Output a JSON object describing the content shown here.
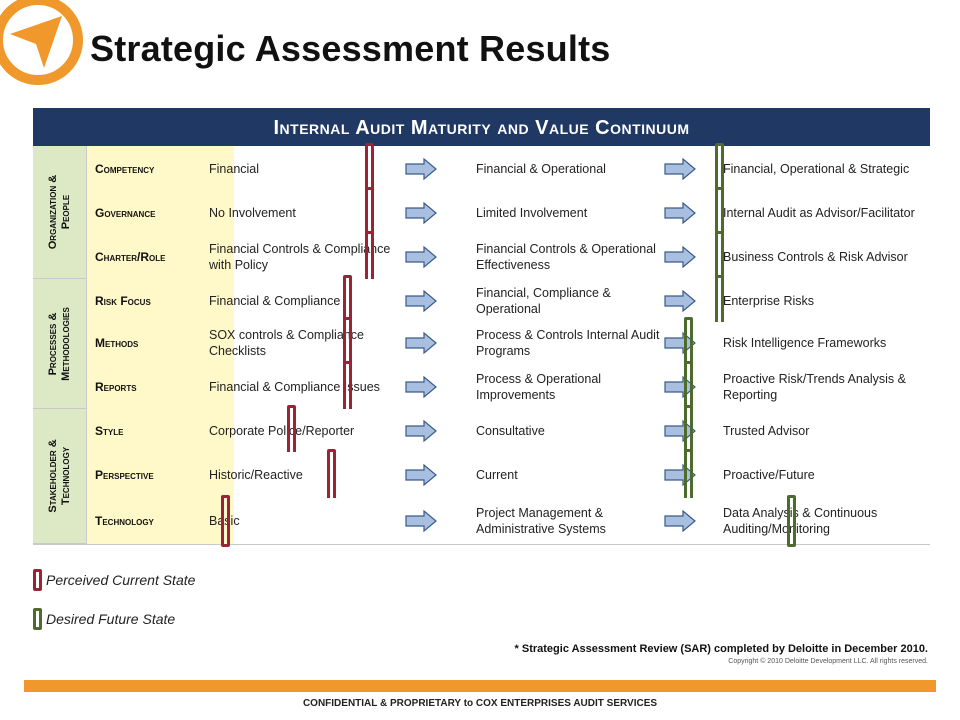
{
  "title": "Strategic Assessment Results",
  "matrix_title": "Internal Audit Maturity and Value Continuum",
  "groups": [
    {
      "label_line1": "Organization &",
      "label_line2": "People"
    },
    {
      "label_line1": "Processes &",
      "label_line2": "Methodologies"
    },
    {
      "label_line1": "Stakeholder &",
      "label_line2": "Technology"
    }
  ],
  "rows": [
    {
      "category": "Competency",
      "stage1": "Financial",
      "stage2": "Financial & Operational",
      "stage3": "Financial, Operational & Strategic"
    },
    {
      "category": "Governance",
      "stage1": "No Involvement",
      "stage2": "Limited Involvement",
      "stage3": "Internal Audit as Advisor/Facilitator"
    },
    {
      "category": "Charter/Role",
      "stage1": "Financial Controls & Compliance with Policy",
      "stage2": "Financial Controls & Operational Effectiveness",
      "stage3": "Business Controls & Risk Advisor"
    },
    {
      "category": "Risk Focus",
      "stage1": "Financial & Compliance",
      "stage2": "Financial, Compliance & Operational",
      "stage3": "Enterprise Risks"
    },
    {
      "category": "Methods",
      "stage1": "SOX controls & Compliance Checklists",
      "stage2": "Process & Controls Internal Audit Programs",
      "stage3": "Risk Intelligence Frameworks"
    },
    {
      "category": "Reports",
      "stage1": "Financial & Compliance Issues",
      "stage2": "Process & Operational Improvements",
      "stage3": "Proactive Risk/Trends Analysis & Reporting"
    },
    {
      "category": "Style",
      "stage1": "Corporate Police/Reporter",
      "stage2": "Consultative",
      "stage3": "Trusted Advisor"
    },
    {
      "category": "Perspective",
      "stage1": "Historic/Reactive",
      "stage2": "Current",
      "stage3": "Proactive/Future"
    },
    {
      "category": "Technology",
      "stage1": "Basic",
      "stage2": "Project Management & Administrative Systems",
      "stage3": "Data Analysis & Continuous Auditing/Monitoring"
    }
  ],
  "legend": {
    "current": "Perceived Current State",
    "future": "Desired Future State",
    "current_color": "#9b2335",
    "future_color": "#4e6b2e"
  },
  "note": "* Strategic Assessment Review (SAR) completed by Deloitte in December 2010.",
  "copyright": "Copyright © 2010 Deloitte Development LLC. All rights reserved.",
  "footer": "CONFIDENTIAL & PROPRIETARY to COX ENTERPRISES AUDIT SERVICES",
  "accent_color": "#f0982b",
  "header_color": "#1f3864"
}
